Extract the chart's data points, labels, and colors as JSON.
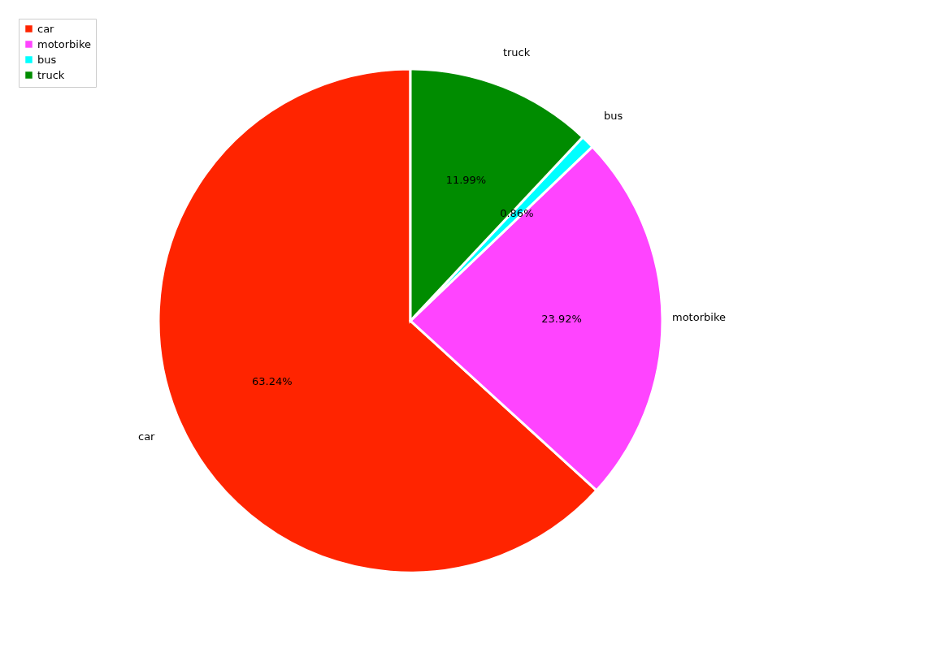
{
  "chart_data": {
    "type": "pie",
    "categories": [
      "car",
      "motorbike",
      "bus",
      "truck"
    ],
    "values": [
      63.24,
      23.92,
      0.86,
      11.99
    ],
    "colors": [
      "#ff2400",
      "#ff44ff",
      "#00ffff",
      "#008c00"
    ],
    "value_labels": [
      "63.24%",
      "23.92%",
      "0.86%",
      "11.99%"
    ],
    "legend": "top left"
  }
}
